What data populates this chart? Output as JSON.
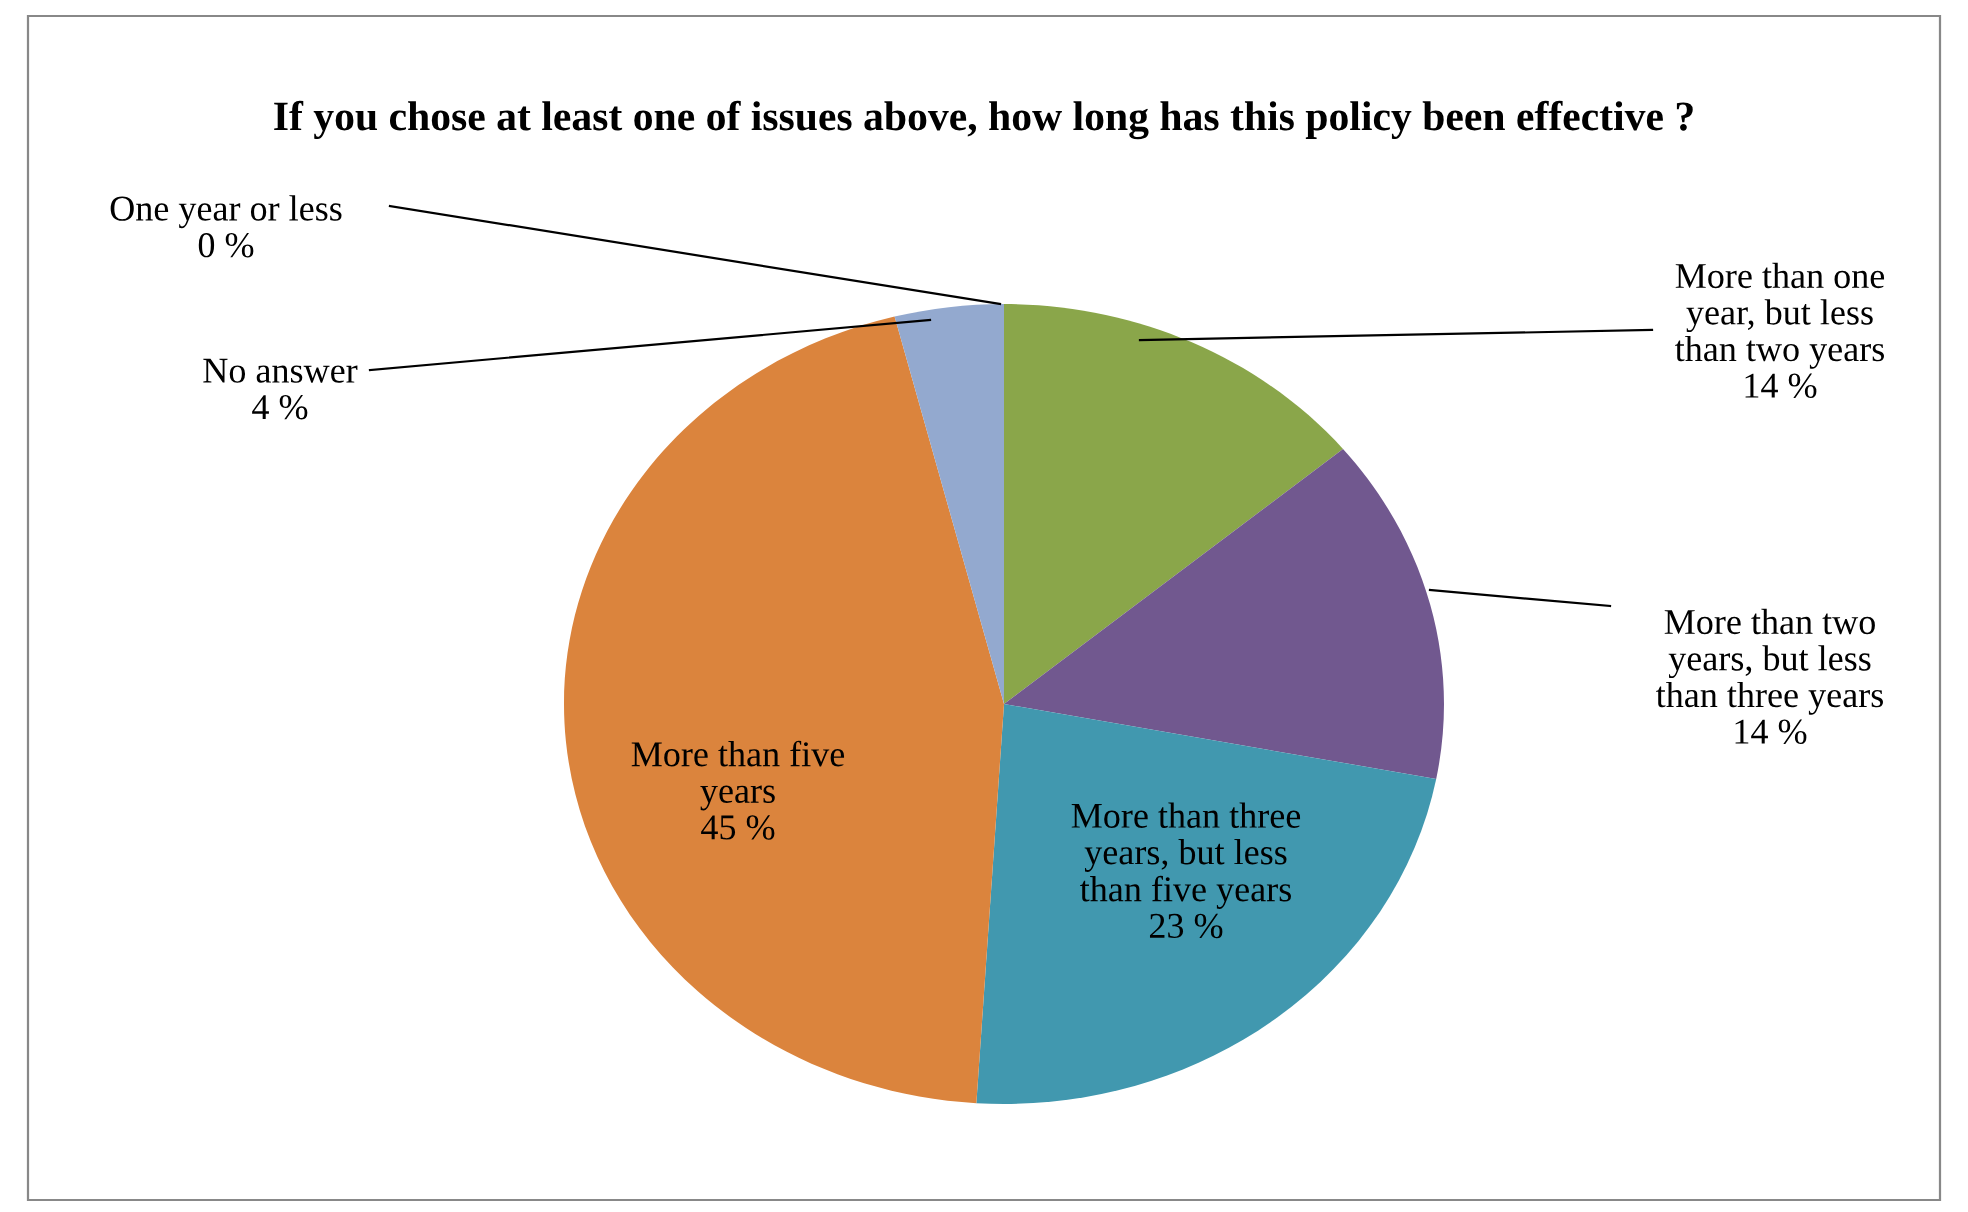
{
  "chart_data": {
    "type": "pie",
    "title": "If you chose at least one of issues above, how long has this policy been effective ?",
    "categories": [
      "One year or less",
      "More than one year, but less than two years",
      "More than two years, but less than three years",
      "More than three years, but less than five years",
      "More than five years",
      "No answer"
    ],
    "values": [
      0,
      14,
      14,
      23,
      45,
      4
    ],
    "colors": [
      "#a9514e",
      "#8aa64a",
      "#71588f",
      "#4198af",
      "#db843d",
      "#93a9cf"
    ],
    "value_labels": [
      "0 %",
      "14 %",
      "14 %",
      "23 %",
      "45 %",
      "4 %"
    ],
    "legend": false
  }
}
